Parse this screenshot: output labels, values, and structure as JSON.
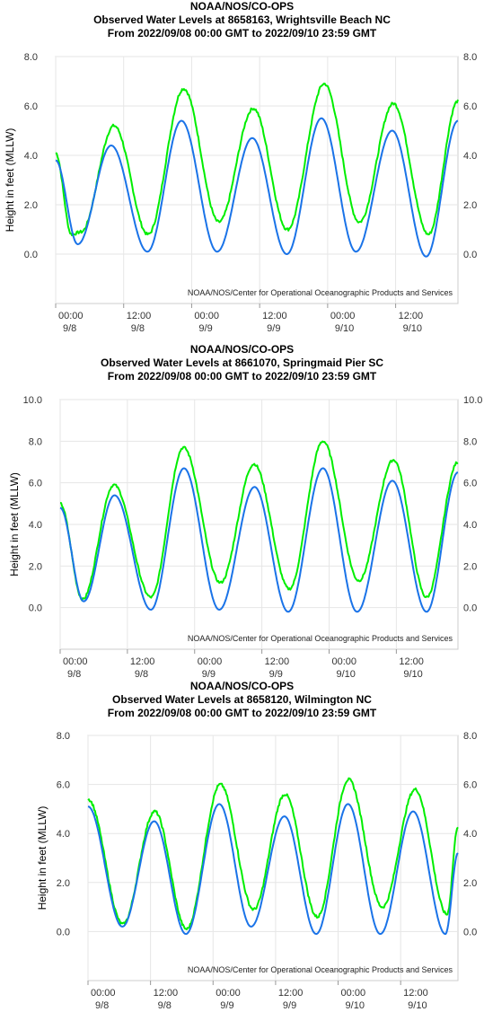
{
  "chart_data": [
    {
      "type": "line",
      "title": [
        "NOAA/NOS/CO-OPS",
        "Observed Water Levels at 8658163, Wrightsville Beach NC",
        "From 2022/09/08 00:00 GMT to 2022/09/10 23:59 GMT"
      ],
      "ylabel": "Height in feet (MLLW)",
      "credit": "NOAA/NOS/Center for Operational Oceanographic Products and Services",
      "ylim": [
        -2,
        8
      ],
      "yticks": [
        "8.0",
        "6.0",
        "4.0",
        "2.0",
        "0.0"
      ],
      "ytick_values": [
        8,
        6,
        4,
        2,
        0
      ],
      "xlim": [
        0,
        71
      ],
      "xtick_hours": [
        0,
        12,
        24,
        36,
        48,
        60
      ],
      "xtick_labels": [
        [
          "00:00",
          "9/8"
        ],
        [
          "12:00",
          "9/8"
        ],
        [
          "00:00",
          "9/9"
        ],
        [
          "12:00",
          "9/9"
        ],
        [
          "00:00",
          "9/10"
        ],
        [
          "12:00",
          "9/10"
        ]
      ],
      "grid": true,
      "series": [
        {
          "color": "#00ee00",
          "points": [
            [
              0,
              4.1
            ],
            [
              2.8,
              0.8
            ],
            [
              4.5,
              0.9
            ],
            [
              10.3,
              5.2
            ],
            [
              16.3,
              0.8
            ],
            [
              22.6,
              6.7
            ],
            [
              28.8,
              1.3
            ],
            [
              34.9,
              5.9
            ],
            [
              40.9,
              1.0
            ],
            [
              47.4,
              6.9
            ],
            [
              53.6,
              1.3
            ],
            [
              59.6,
              6.1
            ],
            [
              65.8,
              0.8
            ],
            [
              71,
              6.2
            ]
          ]
        },
        {
          "color": "#1a73e8",
          "points": [
            [
              0,
              3.8
            ],
            [
              3.9,
              0.4
            ],
            [
              9.8,
              4.4
            ],
            [
              16.2,
              0.1
            ],
            [
              22.2,
              5.4
            ],
            [
              28.5,
              0.1
            ],
            [
              34.7,
              4.7
            ],
            [
              40.8,
              0.0
            ],
            [
              46.9,
              5.5
            ],
            [
              53.0,
              0.1
            ],
            [
              59.4,
              5.0
            ],
            [
              65.4,
              -0.1
            ],
            [
              71,
              5.4
            ]
          ]
        }
      ]
    },
    {
      "type": "line",
      "title": [
        "NOAA/NOS/CO-OPS",
        "Observed Water Levels at 8661070, Springmaid Pier SC",
        "From 2022/09/08 00:00 GMT to 2022/09/10 23:59 GMT"
      ],
      "ylabel": "Height in feet (MLLW)",
      "credit": "NOAA/NOS/Center for Operational Oceanographic Products and Services",
      "ylim": [
        -2,
        10
      ],
      "yticks": [
        "10.0",
        "8.0",
        "6.0",
        "4.0",
        "2.0",
        "0.0"
      ],
      "ytick_values": [
        10,
        8,
        6,
        4,
        2,
        0
      ],
      "xlim": [
        0,
        71
      ],
      "xtick_hours": [
        0,
        12,
        24,
        36,
        48,
        60
      ],
      "xtick_labels": [
        [
          "00:00",
          "9/8"
        ],
        [
          "12:00",
          "9/8"
        ],
        [
          "00:00",
          "9/9"
        ],
        [
          "12:00",
          "9/9"
        ],
        [
          "00:00",
          "9/10"
        ],
        [
          "12:00",
          "9/10"
        ]
      ],
      "grid": true,
      "series": [
        {
          "color": "#00ee00",
          "points": [
            [
              0,
              5.0
            ],
            [
              4.0,
              0.4
            ],
            [
              9.6,
              5.9
            ],
            [
              16.2,
              0.5
            ],
            [
              22.0,
              7.7
            ],
            [
              28.6,
              1.2
            ],
            [
              34.6,
              6.9
            ],
            [
              40.9,
              0.9
            ],
            [
              46.9,
              8.0
            ],
            [
              53.3,
              1.3
            ],
            [
              59.5,
              7.1
            ],
            [
              65.4,
              0.5
            ],
            [
              71,
              7.0
            ]
          ]
        },
        {
          "color": "#1a73e8",
          "points": [
            [
              0,
              4.8
            ],
            [
              4.2,
              0.3
            ],
            [
              9.7,
              5.4
            ],
            [
              16.2,
              -0.1
            ],
            [
              22.1,
              6.7
            ],
            [
              28.4,
              -0.1
            ],
            [
              34.7,
              5.8
            ],
            [
              40.7,
              -0.2
            ],
            [
              46.9,
              6.7
            ],
            [
              53.0,
              -0.2
            ],
            [
              59.3,
              6.1
            ],
            [
              65.4,
              -0.2
            ],
            [
              71,
              6.5
            ]
          ]
        }
      ]
    },
    {
      "type": "line",
      "title": [
        "NOAA/NOS/CO-OPS",
        "Observed Water Levels at 8658120, Wilmington NC",
        "From 2022/09/08 00:00 GMT to 2022/09/10 23:59 GMT"
      ],
      "ylabel": "Height in feet (MLLW)",
      "credit": "NOAA/NOS/Center for Operational Oceanographic Products and Services",
      "ylim": [
        -2,
        8
      ],
      "yticks": [
        "8.0",
        "6.0",
        "4.0",
        "2.0",
        "0.0"
      ],
      "ytick_values": [
        8,
        6,
        4,
        2,
        0
      ],
      "xlim": [
        0,
        71
      ],
      "xtick_hours": [
        0,
        12,
        24,
        36,
        48,
        60
      ],
      "xtick_labels": [
        [
          "00:00",
          "9/8"
        ],
        [
          "12:00",
          "9/8"
        ],
        [
          "00:00",
          "9/9"
        ],
        [
          "12:00",
          "9/9"
        ],
        [
          "00:00",
          "9/10"
        ],
        [
          "12:00",
          "9/10"
        ]
      ],
      "grid": true,
      "series": [
        {
          "color": "#00ee00",
          "points": [
            [
              0,
              5.4
            ],
            [
              6.7,
              0.3
            ],
            [
              12.8,
              4.9
            ],
            [
              18.9,
              0.1
            ],
            [
              25.4,
              6.0
            ],
            [
              31.8,
              0.9
            ],
            [
              37.8,
              5.6
            ],
            [
              44.0,
              0.6
            ],
            [
              50.0,
              6.2
            ],
            [
              56.5,
              1.0
            ],
            [
              62.8,
              5.8
            ],
            [
              68.9,
              0.7
            ],
            [
              71,
              4.3
            ]
          ]
        },
        {
          "color": "#1a73e8",
          "points": [
            [
              0,
              5.1
            ],
            [
              6.6,
              0.2
            ],
            [
              12.7,
              4.5
            ],
            [
              18.8,
              -0.1
            ],
            [
              25.2,
              5.2
            ],
            [
              31.3,
              0.2
            ],
            [
              37.7,
              4.7
            ],
            [
              43.8,
              -0.1
            ],
            [
              49.9,
              5.2
            ],
            [
              56.1,
              -0.1
            ],
            [
              62.4,
              4.9
            ],
            [
              68.6,
              -0.1
            ],
            [
              71,
              3.2
            ]
          ]
        }
      ]
    }
  ]
}
